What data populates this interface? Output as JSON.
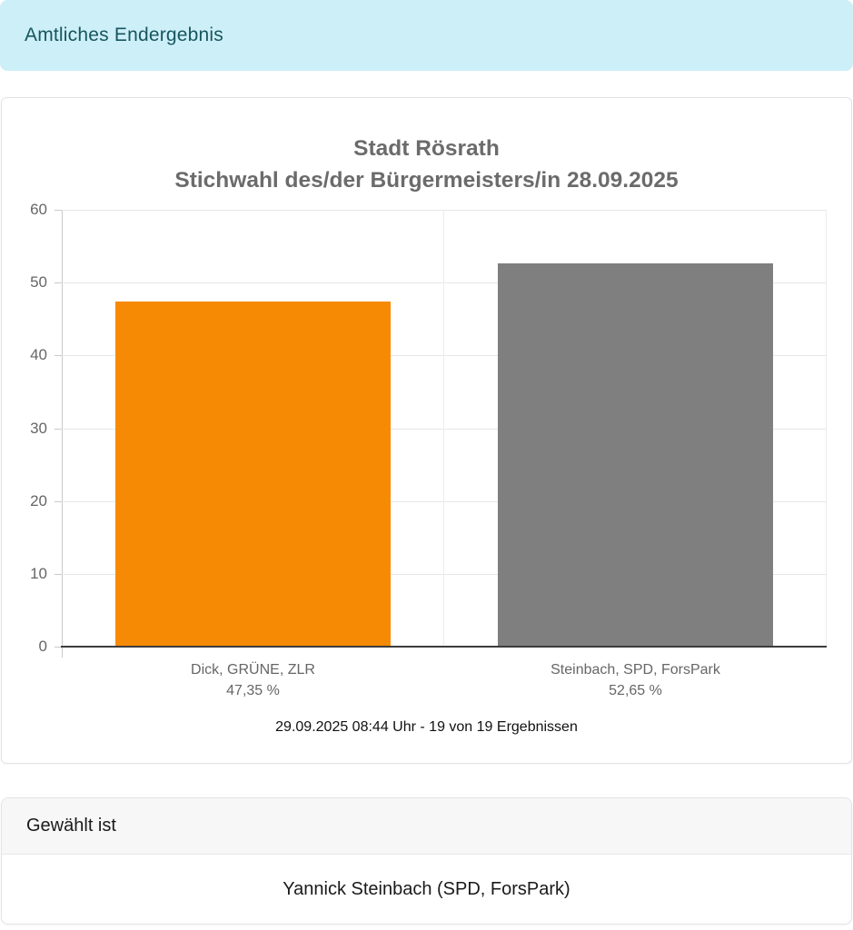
{
  "header": {
    "title": "Amtliches Endergebnis"
  },
  "chart_card": {
    "caption": "29.09.2025 08:44 Uhr - 19 von 19 Ergebnissen"
  },
  "chart_data": {
    "type": "bar",
    "title_line1": "Stadt Rösrath",
    "title_line2": "Stichwahl des/der Bürgermeisters/in 28.09.2025",
    "categories": [
      "Dick, GRÜNE, ZLR",
      "Steinbach, SPD, ForsPark"
    ],
    "values": [
      47.35,
      52.65
    ],
    "value_labels": [
      "47,35 %",
      "52,65 %"
    ],
    "bar_colors": [
      "#f78a05",
      "#7f7f7f"
    ],
    "ylabel": "",
    "xlabel": "",
    "ylim": [
      0,
      60
    ],
    "yticks": [
      0,
      10,
      20,
      30,
      40,
      50,
      60
    ],
    "grid": true,
    "legend": false
  },
  "result_card": {
    "header": "Gewählt ist",
    "winner": "Yannick Steinbach (SPD, ForsPark)"
  },
  "colors": {
    "banner_bg": "#cdeff8",
    "banner_text": "#17565f",
    "title_text": "#6b6b6b",
    "axis_text": "#666666",
    "bar_orange": "#f78a05",
    "bar_gray": "#7f7f7f",
    "baseline": "#3c3c3c",
    "gridline": "#e7e7e7"
  }
}
